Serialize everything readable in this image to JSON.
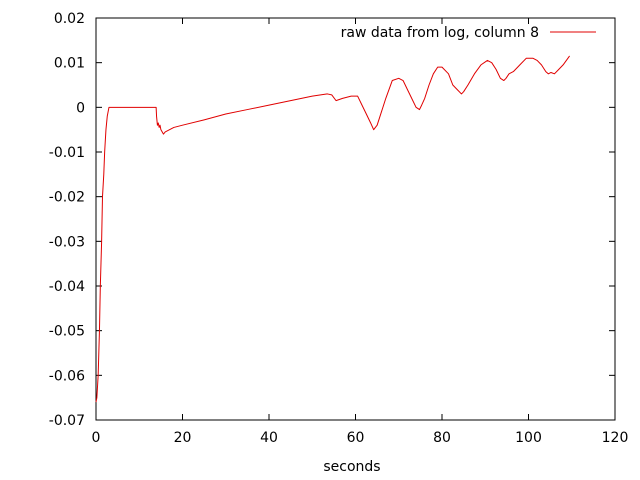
{
  "chart_data": {
    "type": "line",
    "title": "",
    "xlabel": "seconds",
    "ylabel": "",
    "xlim": [
      0,
      120
    ],
    "ylim": [
      -0.07,
      0.02
    ],
    "xticks": [
      0,
      20,
      40,
      60,
      80,
      100,
      120
    ],
    "xtick_labels": [
      "0",
      "20",
      "40",
      "60",
      "80",
      "100",
      "120"
    ],
    "yticks": [
      -0.07,
      -0.06,
      -0.05,
      -0.04,
      -0.03,
      -0.02,
      -0.01,
      0,
      0.01,
      0.02
    ],
    "ytick_labels": [
      "-0.07",
      "-0.06",
      "-0.05",
      "-0.04",
      "-0.03",
      "-0.02",
      "-0.01",
      "0",
      "0.01",
      "0.02"
    ],
    "grid": false,
    "legend_position": "top-right",
    "series": [
      {
        "name": "raw data from log, column 8",
        "color": "#e00000",
        "x": [
          0,
          0.2,
          0.5,
          0.8,
          1.0,
          1.3,
          1.5,
          1.8,
          2.0,
          2.3,
          2.6,
          3.0,
          3.5,
          4.0,
          5.0,
          6.0,
          8.0,
          10.0,
          12.0,
          13.9,
          14.0,
          14.2,
          14.4,
          14.6,
          14.8,
          15.0,
          15.3,
          15.6,
          16.0,
          18.0,
          20.0,
          25.0,
          30.0,
          35.0,
          40.0,
          45.0,
          50.0,
          53.5,
          54.5,
          55.5,
          57.0,
          59.0,
          60.5,
          61.5,
          62.5,
          63.5,
          64.2,
          64.6,
          65.0,
          66.0,
          67.0,
          68.5,
          70.0,
          71.0,
          72.0,
          73.0,
          74.0,
          74.8,
          75.3,
          76.0,
          77.0,
          78.0,
          79.0,
          80.0,
          81.5,
          82.5,
          83.5,
          84.5,
          85.0,
          86.0,
          87.5,
          89.0,
          90.5,
          91.5,
          92.5,
          93.5,
          94.3,
          94.8,
          95.5,
          96.5,
          98.0,
          99.5,
          101.0,
          102.0,
          103.0,
          104.0,
          104.6,
          105.2,
          106.0,
          107.0,
          108.0,
          109.5
        ],
        "y": [
          -0.066,
          -0.065,
          -0.06,
          -0.05,
          -0.04,
          -0.03,
          -0.02,
          -0.015,
          -0.01,
          -0.005,
          -0.002,
          0.0,
          0.0,
          0.0,
          0.0,
          0.0,
          0.0,
          0.0,
          0.0,
          0.0,
          -0.002,
          -0.004,
          -0.0035,
          -0.0045,
          -0.004,
          -0.005,
          -0.0055,
          -0.006,
          -0.0055,
          -0.0045,
          -0.004,
          -0.0028,
          -0.0015,
          -0.0005,
          0.0005,
          0.0015,
          0.0025,
          0.003,
          0.0028,
          0.0015,
          0.002,
          0.0025,
          0.0025,
          0.0005,
          -0.0015,
          -0.0035,
          -0.005,
          -0.0045,
          -0.004,
          -0.001,
          0.002,
          0.006,
          0.0065,
          0.006,
          0.004,
          0.002,
          0.0,
          -0.0005,
          0.0005,
          0.002,
          0.005,
          0.0075,
          0.009,
          0.009,
          0.0075,
          0.005,
          0.004,
          0.003,
          0.0035,
          0.005,
          0.0075,
          0.0095,
          0.0105,
          0.01,
          0.0085,
          0.0065,
          0.006,
          0.0065,
          0.0075,
          0.008,
          0.0095,
          0.011,
          0.011,
          0.0105,
          0.0095,
          0.008,
          0.0075,
          0.0078,
          0.0075,
          0.0085,
          0.0095,
          0.0115
        ]
      }
    ]
  }
}
